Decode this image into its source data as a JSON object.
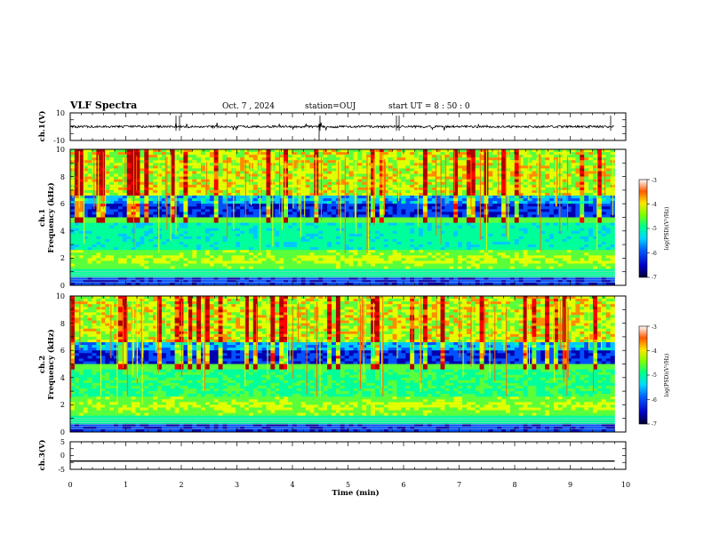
{
  "header": {
    "title": "VLF Spectra",
    "date": "Oct. 7 , 2024",
    "station": "station=OUJ",
    "start": "start UT = 8 : 50 : 0"
  },
  "chart_data": [
    {
      "type": "line",
      "panel": "ch1-waveform",
      "ylabel": "ch.1(V)",
      "ylim": [
        -10,
        10
      ],
      "yticks": [
        "10",
        "-10"
      ],
      "xlim": [
        0,
        10
      ],
      "baseline": 0,
      "color": "#000000"
    },
    {
      "type": "heatmap",
      "panel": "ch1-spectrogram",
      "ylabel_top": "ch.1",
      "ylabel": "Frequency (kHz)",
      "ylim": [
        0,
        10
      ],
      "yticks": [
        "0",
        "2",
        "4",
        "6",
        "8",
        "10"
      ],
      "xlim": [
        0,
        10
      ],
      "colorbar": {
        "label": "log(PSD)(V²/Hz)",
        "range": [
          -7,
          -3
        ],
        "ticks": [
          "-3",
          "-4",
          "-5",
          "-6",
          "-7"
        ]
      }
    },
    {
      "type": "heatmap",
      "panel": "ch2-spectrogram",
      "ylabel_top": "ch.2",
      "ylabel": "Frequency (kHz)",
      "ylim": [
        0,
        10
      ],
      "yticks": [
        "0",
        "2",
        "4",
        "6",
        "8",
        "10"
      ],
      "xlim": [
        0,
        10
      ],
      "colorbar": {
        "label": "log(PSD)(V²/Hz)",
        "range": [
          -7,
          -3
        ],
        "ticks": [
          "-3",
          "-4",
          "-5",
          "-6",
          "-7"
        ]
      }
    },
    {
      "type": "line",
      "panel": "ch3-waveform",
      "ylabel": "ch.3(V)",
      "ylim": [
        -5,
        5
      ],
      "yticks": [
        "5",
        "0",
        "-5"
      ],
      "xlim": [
        0,
        10
      ],
      "constant_value": -2,
      "color": "#000000"
    }
  ],
  "xaxis": {
    "label": "Time (min)",
    "ticks": [
      "0",
      "1",
      "2",
      "3",
      "4",
      "5",
      "6",
      "7",
      "8",
      "9",
      "10"
    ],
    "data_end": 9.8
  },
  "colormap": [
    "#00003a",
    "#0000b0",
    "#0050ff",
    "#00c8ff",
    "#00ff9a",
    "#5aff3a",
    "#e0ff00",
    "#ff8c00",
    "#ff0000",
    "#b00000"
  ]
}
